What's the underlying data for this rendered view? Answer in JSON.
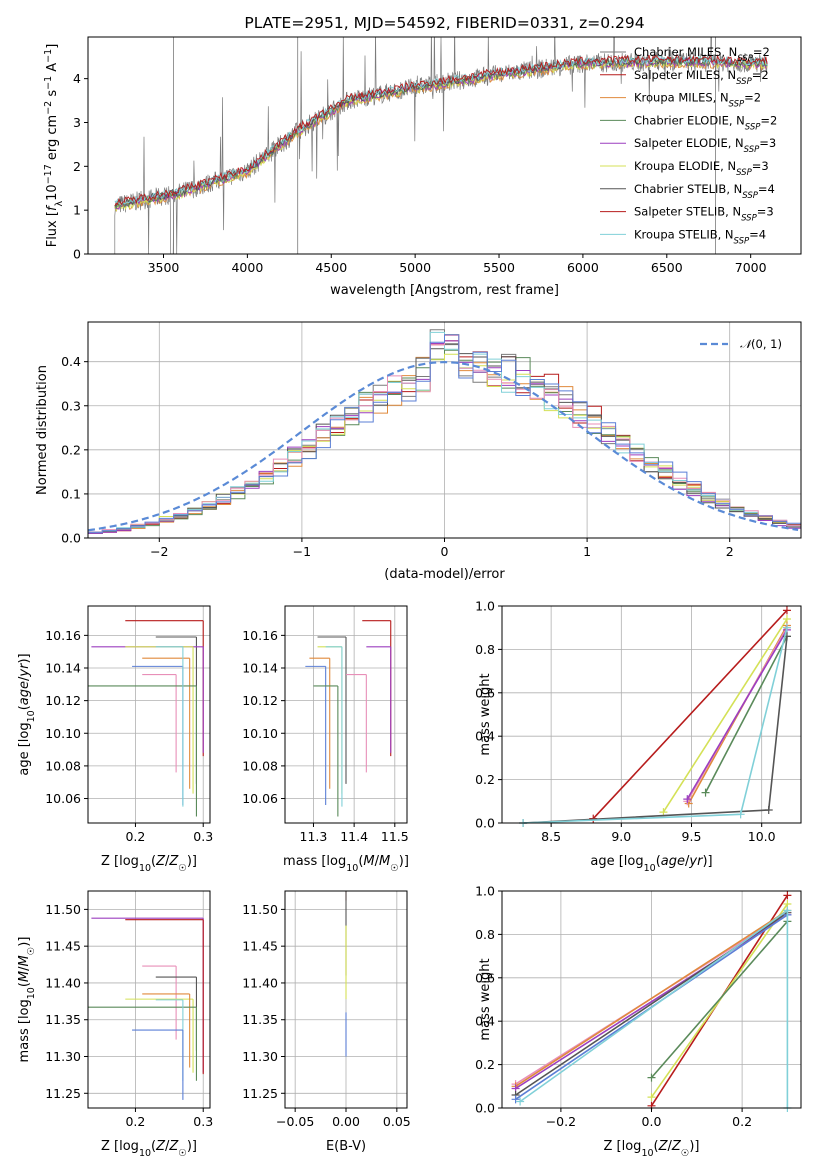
{
  "colors": {
    "c_miles": "#7b7b7b",
    "s_miles": "#b71c1c",
    "k_miles": "#e08a3c",
    "c_elodie": "#5a8a5a",
    "s_elodie": "#9c3fbf",
    "k_elodie": "#d4e157",
    "c_stelib": "#555555",
    "s_stelib": "#b71c1c",
    "k_stelib": "#80d0d8",
    "pink": "#e88fb8",
    "blue": "#5b7fd6",
    "normal": "#5a8ad6"
  },
  "chart_data": [
    {
      "id": "spectrum",
      "type": "line",
      "title": "PLATE=2951, MJD=54592, FIBERID=0331, z=0.294",
      "xlabel": "wavelength [Angstrom, rest frame]",
      "ylabel": "Flux [f_λ 10^-17 erg cm^-2 s^-1 A^-1]",
      "xlim": [
        3050,
        7300
      ],
      "ylim": [
        0,
        4.95
      ],
      "xticks": [
        "3500",
        "4000",
        "4500",
        "5000",
        "5500",
        "6000",
        "6500",
        "7000"
      ],
      "yticks": [
        "0",
        "1",
        "2",
        "3",
        "4"
      ],
      "grid": false,
      "legend_position": "top-right",
      "legend": [
        "Chabrier MILES, N_SSP=2",
        "Salpeter MILES, N_SSP=2",
        "Kroupa MILES, N_SSP=2",
        "Chabrier ELODIE, N_SSP=2",
        "Salpeter ELODIE, N_SSP=3",
        "Kroupa ELODIE, N_SSP=3",
        "Chabrier STELIB, N_SSP=4",
        "Salpeter STELIB, N_SSP=3",
        "Kroupa STELIB, N_SSP=4"
      ],
      "continuum_shape": [
        [
          3210,
          1.1
        ],
        [
          3600,
          1.4
        ],
        [
          4000,
          1.9
        ],
        [
          4300,
          2.8
        ],
        [
          4600,
          3.5
        ],
        [
          5000,
          3.8
        ],
        [
          5500,
          4.1
        ],
        [
          6000,
          4.35
        ],
        [
          6500,
          4.4
        ],
        [
          7100,
          4.35
        ]
      ]
    },
    {
      "id": "residuals",
      "type": "line",
      "xlabel": "(data-model)/error",
      "ylabel": "Normed distribution",
      "xlim": [
        -2.5,
        2.5
      ],
      "ylim": [
        0,
        0.49
      ],
      "xticks": [
        "-2",
        "-1",
        "0",
        "1",
        "2"
      ],
      "yticks": [
        "0.0",
        "0.1",
        "0.2",
        "0.3",
        "0.4"
      ],
      "grid": true,
      "legend_position": "top-right",
      "legend": [
        "N(0,1)"
      ],
      "normal_mean": 0.0,
      "normal_sigma": 1.0,
      "bin_width": 0.1
    },
    {
      "id": "age-vs-z",
      "type": "scatter",
      "xlabel": "Z [log10(Z/Z☉)]",
      "ylabel": "age [log10(age/yr)]",
      "xlim": [
        0.13,
        0.31
      ],
      "ylim": [
        10.045,
        10.178
      ],
      "xticks": [
        "0.2",
        "0.3"
      ],
      "yticks": [
        "10.06",
        "10.08",
        "10.10",
        "10.12",
        "10.14",
        "10.16"
      ],
      "grid": true,
      "points": [
        {
          "color": "s_miles",
          "x": 0.3,
          "y": 10.169,
          "xerr": 0.115,
          "yerr": [
            0.0,
            0.083
          ]
        },
        {
          "color": "c_stelib",
          "x": 0.29,
          "y": 10.159,
          "xerr": 0.06,
          "yerr": [
            0.0,
            0.09
          ]
        },
        {
          "color": "s_elodie",
          "x": 0.3,
          "y": 10.153,
          "xerr": 0.165,
          "yerr": [
            0.0,
            0.065
          ]
        },
        {
          "color": "k_elodie",
          "x": 0.285,
          "y": 10.153,
          "xerr": 0.1,
          "yerr": [
            0.0,
            0.09
          ]
        },
        {
          "color": "k_miles",
          "x": 0.28,
          "y": 10.146,
          "xerr": 0.07,
          "yerr": [
            0.0,
            0.08
          ]
        },
        {
          "color": "blue",
          "x": 0.27,
          "y": 10.141,
          "xerr": 0.075,
          "yerr": [
            0.0,
            0.085
          ]
        },
        {
          "color": "pink",
          "x": 0.26,
          "y": 10.136,
          "xerr": 0.05,
          "yerr": [
            0.0,
            0.06
          ]
        },
        {
          "color": "c_elodie",
          "x": 0.29,
          "y": 10.129,
          "xerr": 0.165,
          "yerr": [
            0.0,
            0.08
          ]
        },
        {
          "color": "k_stelib",
          "x": 0.27,
          "y": 10.153,
          "xerr": 0.04,
          "yerr": [
            0.0,
            0.098
          ]
        }
      ]
    },
    {
      "id": "age-vs-mass",
      "type": "scatter",
      "xlabel": "mass [log10(M/M☉)]",
      "ylabel": "",
      "xlim": [
        11.23,
        11.53
      ],
      "ylim": [
        10.045,
        10.178
      ],
      "xticks": [
        "11.3",
        "11.4",
        "11.5"
      ],
      "yticks": [
        "10.06",
        "10.08",
        "10.10",
        "10.12",
        "10.14",
        "10.16"
      ],
      "grid": true,
      "points": [
        {
          "color": "s_miles",
          "x": 11.49,
          "y": 10.169,
          "xerr": 0.07,
          "yerr": [
            0.0,
            0.083
          ]
        },
        {
          "color": "c_stelib",
          "x": 11.38,
          "y": 10.159,
          "xerr": 0.07,
          "yerr": [
            0.0,
            0.09
          ]
        },
        {
          "color": "s_elodie",
          "x": 11.49,
          "y": 10.153,
          "xerr": 0.06,
          "yerr": [
            0.0,
            0.065
          ]
        },
        {
          "color": "k_elodie",
          "x": 11.37,
          "y": 10.153,
          "xerr": 0.06,
          "yerr": [
            0.0,
            0.09
          ]
        },
        {
          "color": "k_miles",
          "x": 11.34,
          "y": 10.146,
          "xerr": 0.05,
          "yerr": [
            0.0,
            0.08
          ]
        },
        {
          "color": "blue",
          "x": 11.33,
          "y": 10.141,
          "xerr": 0.05,
          "yerr": [
            0.0,
            0.085
          ]
        },
        {
          "color": "pink",
          "x": 11.43,
          "y": 10.136,
          "xerr": 0.05,
          "yerr": [
            0.0,
            0.06
          ]
        },
        {
          "color": "c_elodie",
          "x": 11.36,
          "y": 10.129,
          "xerr": 0.06,
          "yerr": [
            0.0,
            0.08
          ]
        },
        {
          "color": "k_stelib",
          "x": 11.37,
          "y": 10.153,
          "xerr": 0.04,
          "yerr": [
            0.0,
            0.098
          ]
        }
      ]
    },
    {
      "id": "massweight-vs-age",
      "type": "line",
      "xlabel": "age [log10(age/yr)]",
      "ylabel": "mass weight",
      "xlim": [
        8.15,
        10.28
      ],
      "ylim": [
        0,
        1.0
      ],
      "xticks": [
        "8.5",
        "9.0",
        "9.5",
        "10.0"
      ],
      "yticks": [
        "0.0",
        "0.2",
        "0.4",
        "0.6",
        "0.8",
        "1.0"
      ],
      "grid": true,
      "series": [
        {
          "color": "s_miles",
          "x": [
            8.8,
            10.18
          ],
          "y": [
            0.02,
            0.98
          ]
        },
        {
          "color": "k_elodie",
          "x": [
            9.3,
            10.18
          ],
          "y": [
            0.05,
            0.94
          ]
        },
        {
          "color": "k_miles",
          "x": [
            9.48,
            10.18
          ],
          "y": [
            0.09,
            0.91
          ]
        },
        {
          "color": "pink",
          "x": [
            9.47,
            10.18
          ],
          "y": [
            0.1,
            0.9
          ]
        },
        {
          "color": "s_elodie",
          "x": [
            9.47,
            10.18
          ],
          "y": [
            0.11,
            0.89
          ]
        },
        {
          "color": "c_elodie",
          "x": [
            9.6,
            10.18
          ],
          "y": [
            0.14,
            0.86
          ]
        },
        {
          "color": "c_stelib",
          "x": [
            8.3,
            10.05,
            10.18
          ],
          "y": [
            0.0,
            0.06,
            0.86
          ]
        },
        {
          "color": "k_stelib",
          "x": [
            8.3,
            9.85,
            10.18
          ],
          "y": [
            0.0,
            0.04,
            0.9
          ]
        }
      ]
    },
    {
      "id": "mass-vs-z",
      "type": "scatter",
      "xlabel": "Z [log10(Z/Z☉)]",
      "ylabel": "mass [log10(M/M☉)]",
      "xlim": [
        0.13,
        0.31
      ],
      "ylim": [
        11.23,
        11.525
      ],
      "xticks": [
        "0.2",
        "0.3"
      ],
      "yticks": [
        "11.25",
        "11.30",
        "11.35",
        "11.40",
        "11.45",
        "11.50"
      ],
      "grid": true,
      "points": [
        {
          "color": "s_elodie",
          "x": 0.3,
          "y": 11.488,
          "xerr": 0.165,
          "yerr": [
            0.0,
            0.21
          ]
        },
        {
          "color": "s_miles",
          "x": 0.3,
          "y": 11.486,
          "xerr": 0.115,
          "yerr": [
            0.0,
            0.21
          ]
        },
        {
          "color": "pink",
          "x": 0.26,
          "y": 11.423,
          "xerr": 0.05,
          "yerr": [
            0.0,
            0.1
          ]
        },
        {
          "color": "c_stelib",
          "x": 0.29,
          "y": 11.408,
          "xerr": 0.06,
          "yerr": [
            0.0,
            0.1
          ]
        },
        {
          "color": "k_elodie",
          "x": 0.285,
          "y": 11.378,
          "xerr": 0.1,
          "yerr": [
            0.0,
            0.1
          ]
        },
        {
          "color": "k_miles",
          "x": 0.28,
          "y": 11.385,
          "xerr": 0.07,
          "yerr": [
            0.0,
            0.1
          ]
        },
        {
          "color": "c_elodie",
          "x": 0.29,
          "y": 11.367,
          "xerr": 0.165,
          "yerr": [
            0.0,
            0.1
          ]
        },
        {
          "color": "k_stelib",
          "x": 0.27,
          "y": 11.377,
          "xerr": 0.04,
          "yerr": [
            0.0,
            0.11
          ]
        },
        {
          "color": "blue",
          "x": 0.27,
          "y": 11.336,
          "xerr": 0.075,
          "yerr": [
            0.0,
            0.095
          ]
        }
      ]
    },
    {
      "id": "mass-vs-ebv",
      "type": "scatter",
      "xlabel": "E(B-V)",
      "ylabel": "",
      "xlim": [
        -0.06,
        0.06
      ],
      "ylim": [
        11.23,
        11.525
      ],
      "xticks": [
        "-0.05",
        "0.00",
        "0.05"
      ],
      "yticks": [
        "11.25",
        "11.30",
        "11.35",
        "11.40",
        "11.45",
        "11.50"
      ],
      "grid": true,
      "points": [
        {
          "color": "s_miles",
          "x": 0.0,
          "y": 11.512,
          "xerr": 0.0,
          "yerr": [
            0.1,
            0.0
          ]
        },
        {
          "color": "c_stelib",
          "x": 0.0,
          "y": 11.41,
          "xerr": 0.0,
          "yerr": [
            0.13,
            0.0
          ]
        },
        {
          "color": "k_elodie",
          "x": 0.0,
          "y": 11.378,
          "xerr": 0.0,
          "yerr": [
            0.1,
            0.0
          ]
        },
        {
          "color": "blue",
          "x": 0.0,
          "y": 11.3,
          "xerr": 0.0,
          "yerr": [
            0.06,
            0.0
          ]
        }
      ]
    },
    {
      "id": "massweight-vs-z",
      "type": "line",
      "xlabel": "Z [log10(Z/Z☉)]",
      "ylabel": "mass weight",
      "xlim": [
        -0.33,
        0.33
      ],
      "ylim": [
        0,
        1.0
      ],
      "xticks": [
        "-0.2",
        "0.0",
        "0.2"
      ],
      "yticks": [
        "0.0",
        "0.2",
        "0.4",
        "0.6",
        "0.8",
        "1.0"
      ],
      "grid": true,
      "series": [
        {
          "color": "s_miles",
          "x": [
            0.0,
            0.3
          ],
          "y": [
            0.01,
            0.98
          ]
        },
        {
          "color": "k_elodie",
          "x": [
            0.0,
            0.3
          ],
          "y": [
            0.05,
            0.94
          ]
        },
        {
          "color": "c_elodie",
          "x": [
            0.0,
            0.3
          ],
          "y": [
            0.14,
            0.86
          ]
        },
        {
          "color": "pink",
          "x": [
            -0.3,
            0.3
          ],
          "y": [
            0.11,
            0.9
          ]
        },
        {
          "color": "k_miles",
          "x": [
            -0.3,
            0.3
          ],
          "y": [
            0.1,
            0.91
          ]
        },
        {
          "color": "s_elodie",
          "x": [
            -0.3,
            0.3
          ],
          "y": [
            0.09,
            0.89
          ]
        },
        {
          "color": "c_stelib",
          "x": [
            -0.3,
            0.3
          ],
          "y": [
            0.06,
            0.9
          ]
        },
        {
          "color": "blue",
          "x": [
            -0.3,
            0.3
          ],
          "y": [
            0.04,
            0.89
          ]
        },
        {
          "color": "k_stelib",
          "x": [
            -0.29,
            0.3,
            0.3
          ],
          "y": [
            0.03,
            0.91,
            0.0
          ]
        }
      ]
    }
  ]
}
